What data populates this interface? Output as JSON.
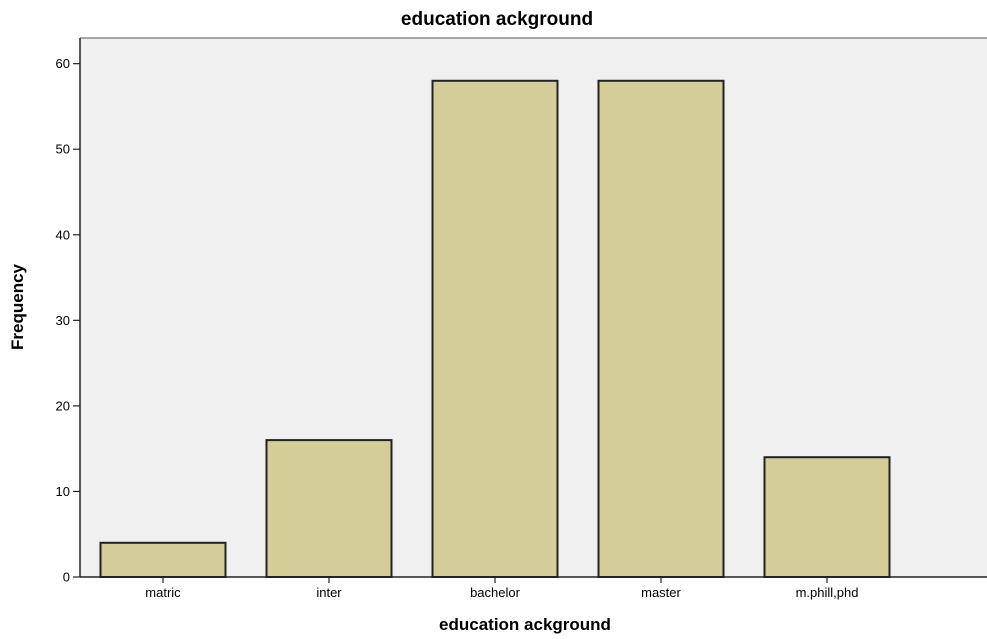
{
  "chart_data": {
    "type": "bar",
    "title": "education ackground",
    "xlabel": "education ackground",
    "ylabel": "Frequency",
    "categories": [
      "matric",
      "inter",
      "bachelor",
      "master",
      "m.phill,phd"
    ],
    "values": [
      4,
      16,
      58,
      58,
      14
    ],
    "ylim": [
      0,
      63
    ],
    "yticks": [
      "0",
      "10",
      "20",
      "30",
      "40",
      "50",
      "60"
    ],
    "grid": false,
    "legend": "none",
    "colors": {
      "bar_fill": "#d3ce97",
      "bar_stroke": "#222222",
      "plot_background": "#f0f0f0",
      "page_background": "#ffffff"
    }
  }
}
